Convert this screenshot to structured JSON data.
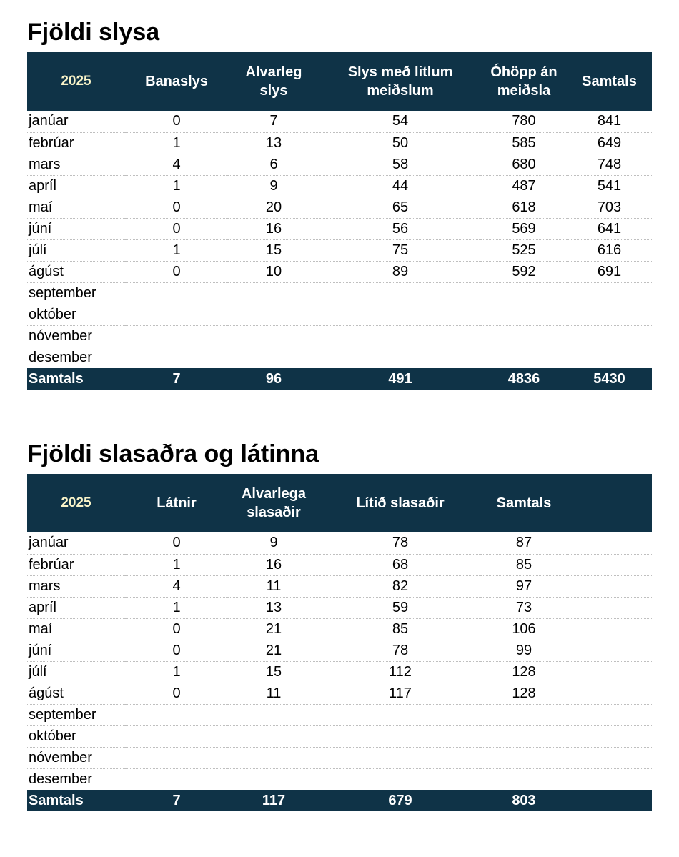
{
  "colors": {
    "header_bg": "#0f3347",
    "header_text": "#ffffff",
    "year_text": "#f8f3c8",
    "divider": "#bfbfbf",
    "body_text": "#000000",
    "page_bg": "#ffffff"
  },
  "table1": {
    "title": "Fjöldi slysa",
    "year": "2025",
    "columns": [
      "Banaslys",
      "Alvarleg slys",
      "Slys með litlum meiðslum",
      "Óhöpp án meiðsla",
      "Samtals"
    ],
    "rows": [
      {
        "month": "janúar",
        "values": [
          "0",
          "7",
          "54",
          "780",
          "841"
        ]
      },
      {
        "month": "febrúar",
        "values": [
          "1",
          "13",
          "50",
          "585",
          "649"
        ]
      },
      {
        "month": "mars",
        "values": [
          "4",
          "6",
          "58",
          "680",
          "748"
        ]
      },
      {
        "month": "apríl",
        "values": [
          "1",
          "9",
          "44",
          "487",
          "541"
        ]
      },
      {
        "month": "maí",
        "values": [
          "0",
          "20",
          "65",
          "618",
          "703"
        ]
      },
      {
        "month": "júní",
        "values": [
          "0",
          "16",
          "56",
          "569",
          "641"
        ]
      },
      {
        "month": "júlí",
        "values": [
          "1",
          "15",
          "75",
          "525",
          "616"
        ]
      },
      {
        "month": "ágúst",
        "values": [
          "0",
          "10",
          "89",
          "592",
          "691"
        ]
      },
      {
        "month": "september",
        "values": [
          "",
          "",
          "",
          "",
          ""
        ]
      },
      {
        "month": "október",
        "values": [
          "",
          "",
          "",
          "",
          ""
        ]
      },
      {
        "month": "nóvember",
        "values": [
          "",
          "",
          "",
          "",
          ""
        ]
      },
      {
        "month": "desember",
        "values": [
          "",
          "",
          "",
          "",
          ""
        ]
      }
    ],
    "total_label": "Samtals",
    "totals": [
      "7",
      "96",
      "491",
      "4836",
      "5430"
    ]
  },
  "table2": {
    "title": "Fjöldi slasaðra og látinna",
    "year": "2025",
    "columns": [
      "Látnir",
      "Alvarlega slasaðir",
      "Lítið slasaðir",
      "Samtals"
    ],
    "rows": [
      {
        "month": "janúar",
        "values": [
          "0",
          "9",
          "78",
          "87"
        ]
      },
      {
        "month": "febrúar",
        "values": [
          "1",
          "16",
          "68",
          "85"
        ]
      },
      {
        "month": "mars",
        "values": [
          "4",
          "11",
          "82",
          "97"
        ]
      },
      {
        "month": "apríl",
        "values": [
          "1",
          "13",
          "59",
          "73"
        ]
      },
      {
        "month": "maí",
        "values": [
          "0",
          "21",
          "85",
          "106"
        ]
      },
      {
        "month": "júní",
        "values": [
          "0",
          "21",
          "78",
          "99"
        ]
      },
      {
        "month": "júlí",
        "values": [
          "1",
          "15",
          "112",
          "128"
        ]
      },
      {
        "month": "ágúst",
        "values": [
          "0",
          "11",
          "117",
          "128"
        ]
      },
      {
        "month": "september",
        "values": [
          "",
          "",
          "",
          ""
        ]
      },
      {
        "month": "október",
        "values": [
          "",
          "",
          "",
          ""
        ]
      },
      {
        "month": "nóvember",
        "values": [
          "",
          "",
          "",
          ""
        ]
      },
      {
        "month": "desember",
        "values": [
          "",
          "",
          "",
          ""
        ]
      }
    ],
    "total_label": "Samtals",
    "totals": [
      "7",
      "117",
      "679",
      "803"
    ]
  }
}
